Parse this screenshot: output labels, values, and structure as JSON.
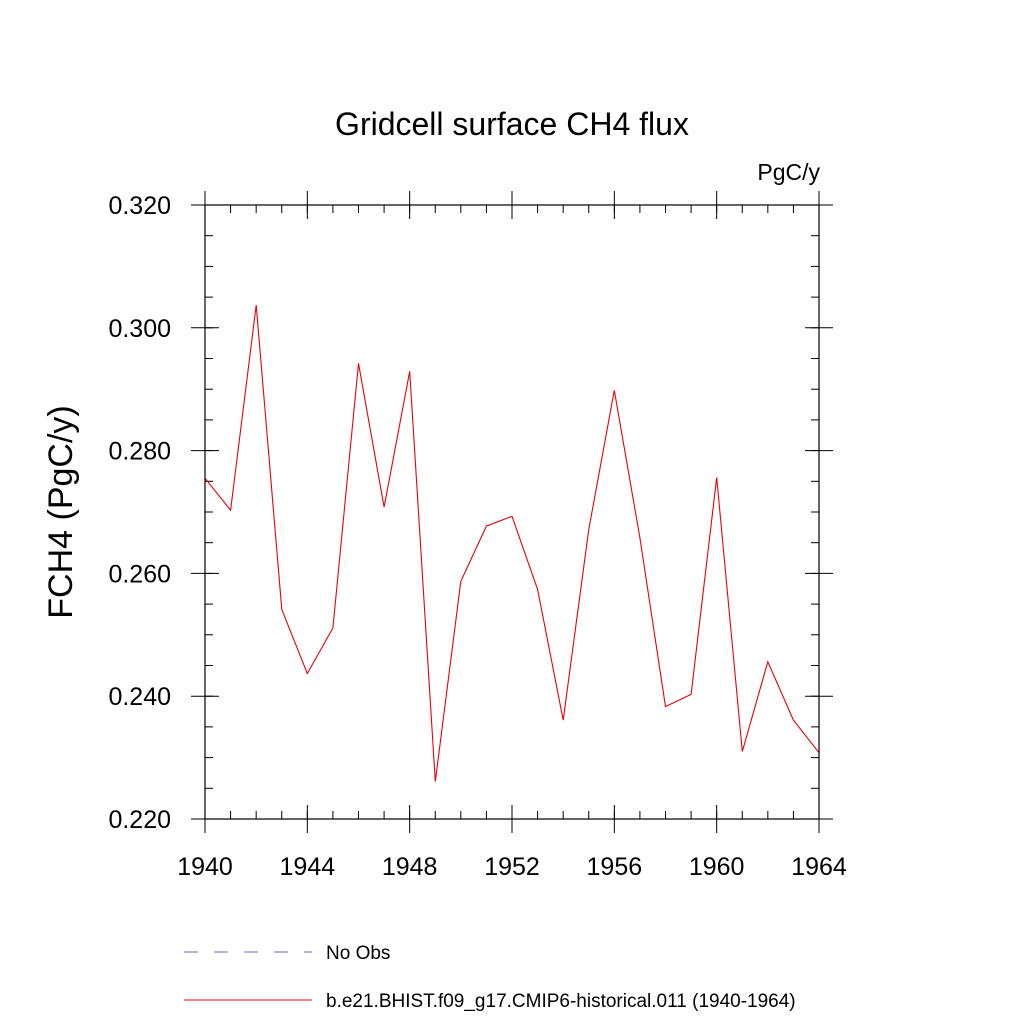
{
  "chart_data": {
    "type": "line",
    "title": "Gridcell surface CH4 flux",
    "units_label": "PgC/y",
    "xlabel": "",
    "ylabel": "FCH4  (PgC/y)",
    "xlim": [
      1940,
      1964
    ],
    "ylim": [
      0.22,
      0.32
    ],
    "x_ticks": [
      1940,
      1944,
      1948,
      1952,
      1956,
      1960,
      1964
    ],
    "x_tick_labels": [
      "1940",
      "1944",
      "1948",
      "1952",
      "1956",
      "1960",
      "1964"
    ],
    "y_ticks": [
      0.22,
      0.24,
      0.26,
      0.28,
      0.3,
      0.32
    ],
    "y_tick_labels": [
      "0.220",
      "0.240",
      "0.260",
      "0.280",
      "0.300",
      "0.320"
    ],
    "grid": false,
    "legend_position": "bottom",
    "series": [
      {
        "name": "b.e21.BHIST.f09_g17.CMIP6-historical.011 (1940-1964)",
        "color": "#e8000b",
        "style": "solid",
        "x": [
          1940,
          1941,
          1942,
          1943,
          1944,
          1945,
          1946,
          1947,
          1948,
          1949,
          1950,
          1951,
          1952,
          1953,
          1954,
          1955,
          1956,
          1957,
          1958,
          1959,
          1960,
          1961,
          1962,
          1963,
          1964
        ],
        "y": [
          0.2755,
          0.2703,
          0.3037,
          0.2541,
          0.2437,
          0.2511,
          0.2942,
          0.2708,
          0.2929,
          0.2261,
          0.2587,
          0.2677,
          0.2693,
          0.2574,
          0.2361,
          0.2672,
          0.2898,
          0.2658,
          0.2383,
          0.2403,
          0.2756,
          0.231,
          0.2456,
          0.2361,
          0.2308
        ]
      }
    ],
    "legend_entries": [
      {
        "label": "No Obs",
        "color": "#6a6ab8",
        "style": "dashed"
      },
      {
        "label": "b.e21.BHIST.f09_g17.CMIP6-historical.011 (1940-1964)",
        "color": "#e8000b",
        "style": "solid"
      }
    ]
  }
}
